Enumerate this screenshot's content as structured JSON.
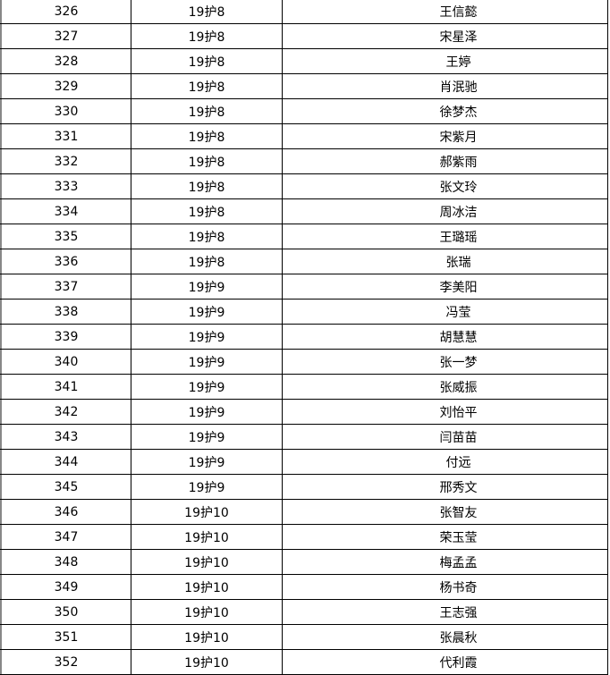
{
  "rows": [
    [
      "326",
      "19护8",
      "王信懿"
    ],
    [
      "327",
      "19护8",
      "宋星泽"
    ],
    [
      "328",
      "19护8",
      "王婷"
    ],
    [
      "329",
      "19护8",
      "肖泯驰"
    ],
    [
      "330",
      "19护8",
      "徐梦杰"
    ],
    [
      "331",
      "19护8",
      "宋紫月"
    ],
    [
      "332",
      "19护8",
      "郝紫雨"
    ],
    [
      "333",
      "19护8",
      "张文玲"
    ],
    [
      "334",
      "19护8",
      "周冰洁"
    ],
    [
      "335",
      "19护8",
      "王璐瑶"
    ],
    [
      "336",
      "19护8",
      "张瑞"
    ],
    [
      "337",
      "19护9",
      "李美阳"
    ],
    [
      "338",
      "19护9",
      "冯莹"
    ],
    [
      "339",
      "19护9",
      "胡慧慧"
    ],
    [
      "340",
      "19护9",
      "张一梦"
    ],
    [
      "341",
      "19护9",
      "张威振"
    ],
    [
      "342",
      "19护9",
      "刘怡平"
    ],
    [
      "343",
      "19护9",
      "闫苗苗"
    ],
    [
      "344",
      "19护9",
      "付远"
    ],
    [
      "345",
      "19护9",
      "邢秀文"
    ],
    [
      "346",
      "19护10",
      "张智友"
    ],
    [
      "347",
      "19护10",
      "荣玉莹"
    ],
    [
      "348",
      "19护10",
      "梅孟孟"
    ],
    [
      "349",
      "19护10",
      "杨书奇"
    ],
    [
      "350",
      "19护10",
      "王志强"
    ],
    [
      "351",
      "19护10",
      "张晨秋"
    ],
    [
      "352",
      "19护10",
      "代利霞"
    ]
  ]
}
